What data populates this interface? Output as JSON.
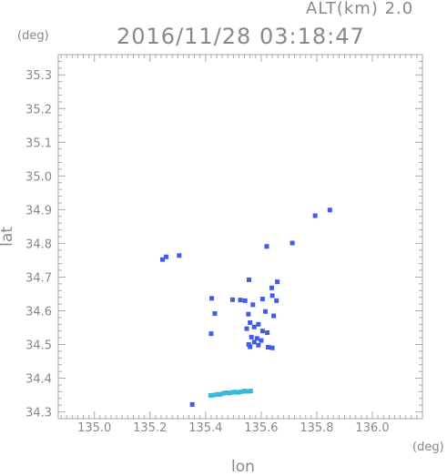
{
  "header": {
    "altitude_label": "ALT(km) 2.0",
    "datetime": "2016/11/28 03:18:47"
  },
  "chart_data": {
    "type": "scatter",
    "title": "2016/11/28 03:18:47",
    "subtitle": "ALT(km) 2.0",
    "xlabel": "lon",
    "ylabel": "lat",
    "x_unit": "(deg)",
    "y_unit": "(deg)",
    "xlim": [
      134.87,
      136.18
    ],
    "ylim": [
      34.28,
      35.36
    ],
    "xticks": [
      135.0,
      135.2,
      135.4,
      135.6,
      135.8,
      136.0
    ],
    "xtick_labels": [
      "135.0",
      "135.2",
      "135.4",
      "135.6",
      "135.8",
      "136.0"
    ],
    "yticks": [
      34.3,
      34.4,
      34.5,
      34.6,
      34.7,
      34.8,
      34.9,
      35.0,
      35.1,
      35.2,
      35.3
    ],
    "ytick_labels": [
      "34.3",
      "34.4",
      "34.5",
      "34.6",
      "34.7",
      "34.8",
      "34.9",
      "35.0",
      "35.1",
      "35.2",
      "35.3"
    ],
    "grid": false,
    "frame_color": "#aaaaaa",
    "text_color": "#888888",
    "series": [
      {
        "color": "#3f5ee8",
        "points": [
          [
            135.245,
            34.752
          ],
          [
            135.258,
            34.76
          ],
          [
            135.305,
            34.764
          ],
          [
            135.794,
            34.882
          ],
          [
            135.847,
            34.899
          ],
          [
            135.62,
            34.791
          ],
          [
            135.712,
            34.801
          ],
          [
            135.556,
            34.692
          ],
          [
            135.658,
            34.686
          ],
          [
            135.638,
            34.668
          ],
          [
            135.422,
            34.637
          ],
          [
            135.497,
            34.633
          ],
          [
            135.525,
            34.632
          ],
          [
            135.542,
            34.63
          ],
          [
            135.64,
            34.645
          ],
          [
            135.605,
            34.635
          ],
          [
            135.57,
            34.618
          ],
          [
            135.655,
            34.63
          ],
          [
            135.433,
            34.592
          ],
          [
            135.554,
            34.59
          ],
          [
            135.615,
            34.598
          ],
          [
            135.645,
            34.585
          ],
          [
            135.56,
            34.565
          ],
          [
            135.575,
            34.552
          ],
          [
            135.59,
            34.56
          ],
          [
            135.548,
            34.547
          ],
          [
            135.605,
            34.54
          ],
          [
            135.622,
            34.535
          ],
          [
            135.42,
            34.532
          ],
          [
            135.565,
            34.522
          ],
          [
            135.585,
            34.518
          ],
          [
            135.6,
            34.512
          ],
          [
            135.575,
            34.507
          ],
          [
            135.555,
            34.5
          ],
          [
            135.56,
            34.493
          ],
          [
            135.59,
            34.498
          ],
          [
            135.625,
            34.492
          ],
          [
            135.64,
            34.49
          ],
          [
            135.352,
            34.322
          ]
        ]
      },
      {
        "color": "#36b8d8",
        "points": [
          [
            135.418,
            34.349
          ],
          [
            135.43,
            34.35
          ],
          [
            135.441,
            34.352
          ],
          [
            135.452,
            34.352
          ],
          [
            135.463,
            34.355
          ],
          [
            135.474,
            34.357
          ],
          [
            135.485,
            34.356
          ],
          [
            135.496,
            34.358
          ],
          [
            135.507,
            34.359
          ],
          [
            135.518,
            34.358
          ],
          [
            135.529,
            34.36
          ],
          [
            135.54,
            34.362
          ],
          [
            135.551,
            34.361
          ],
          [
            135.562,
            34.362
          ]
        ]
      }
    ]
  }
}
